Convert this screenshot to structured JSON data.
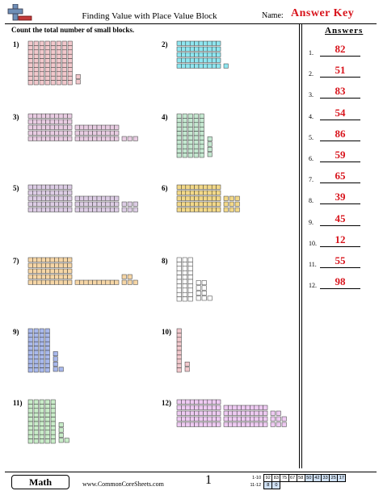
{
  "header": {
    "title": "Finding Value with Place Value Block",
    "name_label": "Name:",
    "answer_key": "Answer Key"
  },
  "instruction": "Count the total number of small blocks.",
  "answers_heading": "Answers",
  "answers": [
    {
      "num": "1.",
      "value": "82"
    },
    {
      "num": "2.",
      "value": "51"
    },
    {
      "num": "3.",
      "value": "83"
    },
    {
      "num": "4.",
      "value": "54"
    },
    {
      "num": "5.",
      "value": "86"
    },
    {
      "num": "6.",
      "value": "59"
    },
    {
      "num": "7.",
      "value": "65"
    },
    {
      "num": "8.",
      "value": "39"
    },
    {
      "num": "9.",
      "value": "45"
    },
    {
      "num": "10.",
      "value": "12"
    },
    {
      "num": "11.",
      "value": "55"
    },
    {
      "num": "12.",
      "value": "98"
    }
  ],
  "problems": [
    {
      "label": "1)",
      "tens": 8,
      "ones": 2,
      "orientation": "vertical",
      "color": "#f2c8cc"
    },
    {
      "label": "2)",
      "tens": 5,
      "ones": 1,
      "orientation": "horizontal",
      "color": "#8ee6f0"
    },
    {
      "label": "3)",
      "tens": 8,
      "ones": 3,
      "orientation": "horizontal",
      "color": "#e8cce2"
    },
    {
      "label": "4)",
      "tens": 5,
      "ones": 4,
      "orientation": "vertical",
      "color": "#c4e8d0"
    },
    {
      "label": "5)",
      "tens": 8,
      "ones": 6,
      "orientation": "horizontal",
      "color": "#dccce4"
    },
    {
      "label": "6)",
      "tens": 5,
      "ones": 9,
      "orientation": "horizontal",
      "color": "#f2d888"
    },
    {
      "label": "7)",
      "tens": 6,
      "ones": 5,
      "orientation": "horizontal",
      "color": "#f6d6a6"
    },
    {
      "label": "8)",
      "tens": 3,
      "ones": 9,
      "orientation": "vertical",
      "color": "#ffffff"
    },
    {
      "label": "9)",
      "tens": 4,
      "ones": 5,
      "orientation": "vertical",
      "color": "#a8b8ec"
    },
    {
      "label": "10)",
      "tens": 1,
      "ones": 2,
      "orientation": "vertical",
      "color": "#f2c8cc"
    },
    {
      "label": "11)",
      "tens": 5,
      "ones": 5,
      "orientation": "vertical",
      "color": "#c8ecc8"
    },
    {
      "label": "12)",
      "tens": 9,
      "ones": 8,
      "orientation": "horizontal",
      "color": "#eecaf2"
    }
  ],
  "footer": {
    "subject": "Math",
    "site": "www.CommonCoreSheets.com",
    "page": "1",
    "score_rows": [
      {
        "label": "1-10",
        "cells": [
          "92",
          "83",
          "75",
          "67",
          "58",
          "50",
          "42",
          "33",
          "25",
          "17"
        ]
      },
      {
        "label": "11-12",
        "cells": [
          "8",
          "0"
        ]
      }
    ]
  }
}
